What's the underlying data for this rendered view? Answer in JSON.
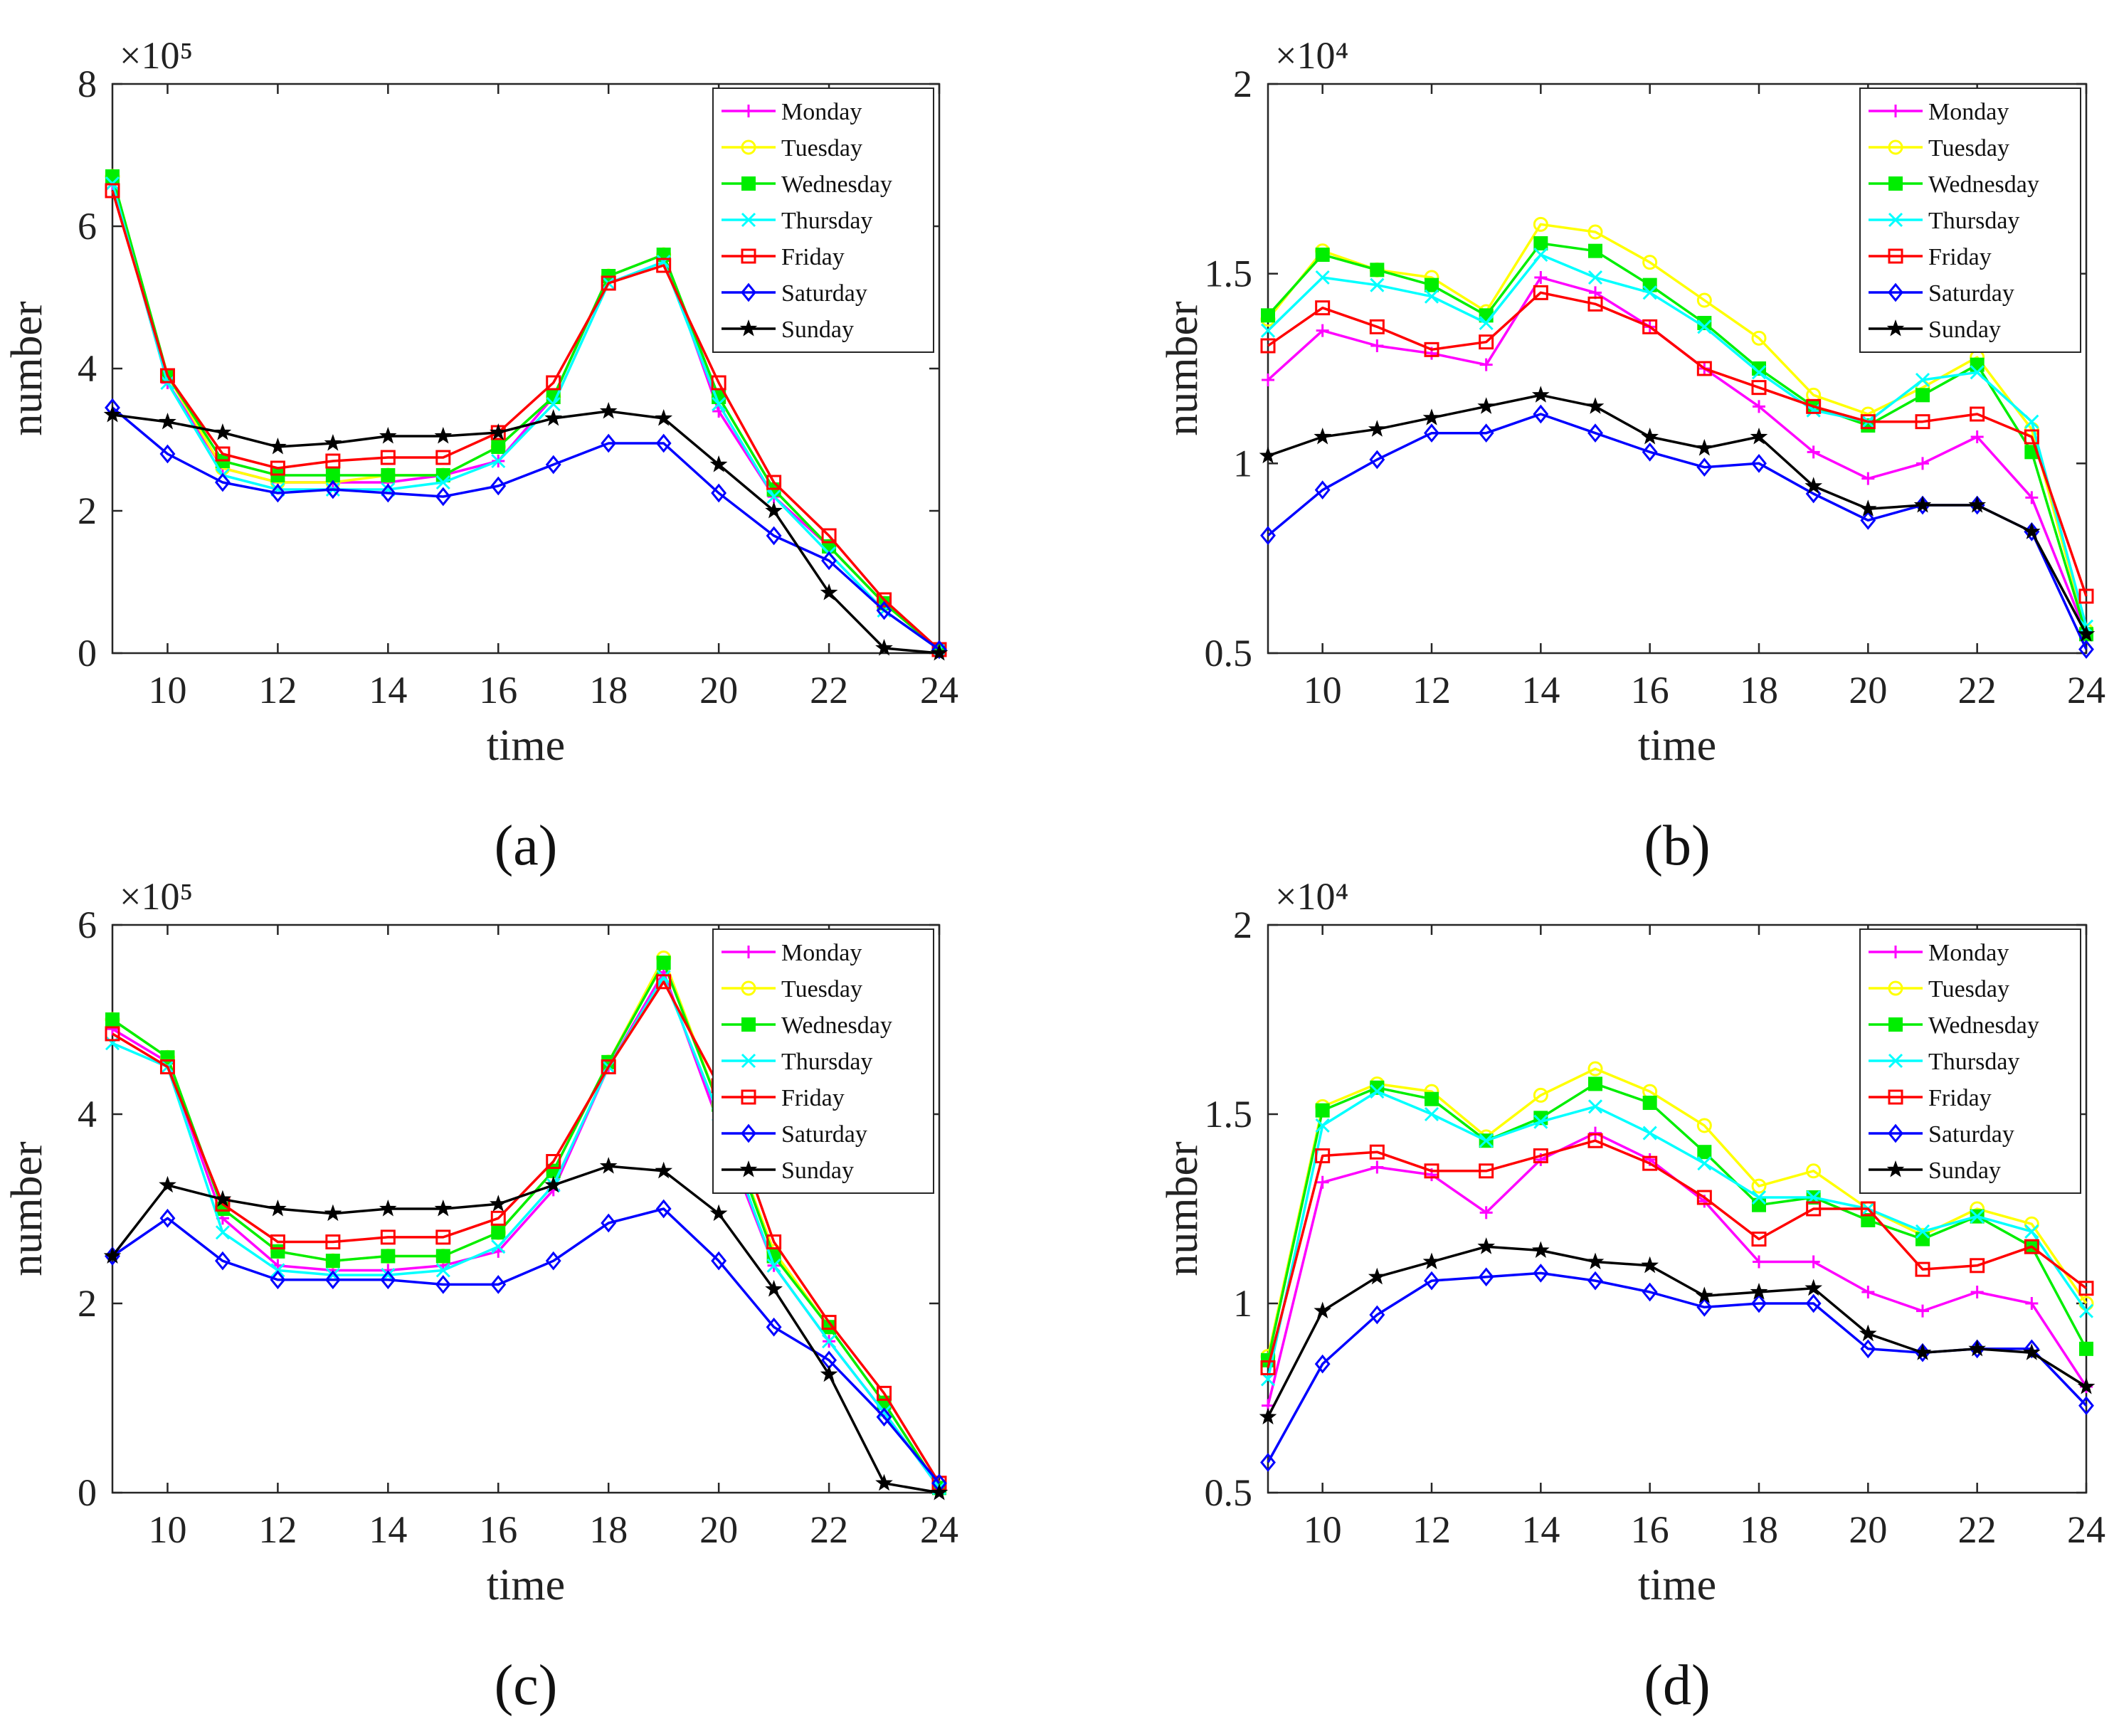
{
  "figure": {
    "panel_labels": [
      "(a)",
      "(b)",
      "(c)",
      "(d)"
    ]
  },
  "series_colors": {
    "Monday": "#ff00ff",
    "Tuesday": "#ffff00",
    "Wednesday": "#00ee00",
    "Thursday": "#00ffff",
    "Friday": "#ff0000",
    "Saturday": "#0000ff",
    "Sunday": "#000000"
  },
  "series_markers": {
    "Monday": "plus",
    "Tuesday": "circle",
    "Wednesday": "square-filled",
    "Thursday": "x",
    "Friday": "square",
    "Saturday": "diamond",
    "Sunday": "star"
  },
  "chart_data": [
    {
      "type": "line",
      "panel": "(a)",
      "xlabel": "time",
      "ylabel": "number",
      "exponent_label": "×10⁵",
      "xlim": [
        9,
        24
      ],
      "ylim": [
        0,
        8
      ],
      "xticks": [
        10,
        12,
        14,
        16,
        18,
        20,
        22,
        24
      ],
      "yticks": [
        0,
        2,
        4,
        6,
        8
      ],
      "legend_position": "top-right",
      "x": [
        9,
        10,
        11,
        12,
        13,
        14,
        15,
        16,
        17,
        18,
        19,
        20,
        21,
        22,
        23,
        24
      ],
      "series": [
        {
          "name": "Monday",
          "legend_label": "Monday",
          "values": [
            6.6,
            3.8,
            2.6,
            2.4,
            2.4,
            2.4,
            2.5,
            2.7,
            3.6,
            5.3,
            5.6,
            3.4,
            2.2,
            1.5,
            0.7,
            0.05
          ]
        },
        {
          "name": "Tuesday",
          "legend_label": "Tuesday",
          "values": [
            6.7,
            3.9,
            2.6,
            2.4,
            2.4,
            2.5,
            2.5,
            2.9,
            3.6,
            5.3,
            5.6,
            3.6,
            2.3,
            1.5,
            0.7,
            0.05
          ]
        },
        {
          "name": "Wednesday",
          "legend_label": "Wednesday",
          "values": [
            6.7,
            3.9,
            2.7,
            2.5,
            2.5,
            2.5,
            2.5,
            2.9,
            3.6,
            5.3,
            5.6,
            3.6,
            2.3,
            1.5,
            0.7,
            0.05
          ]
        },
        {
          "name": "Thursday",
          "legend_label": "Thursday",
          "values": [
            6.6,
            3.8,
            2.5,
            2.3,
            2.3,
            2.3,
            2.4,
            2.7,
            3.5,
            5.2,
            5.5,
            3.5,
            2.2,
            1.4,
            0.6,
            0.05
          ]
        },
        {
          "name": "Friday",
          "legend_label": " Friday",
          "values": [
            6.5,
            3.9,
            2.8,
            2.6,
            2.7,
            2.75,
            2.75,
            3.1,
            3.8,
            5.2,
            5.45,
            3.8,
            2.4,
            1.65,
            0.75,
            0.05
          ]
        },
        {
          "name": "Saturday",
          "legend_label": " Saturday",
          "values": [
            3.45,
            2.8,
            2.4,
            2.25,
            2.3,
            2.25,
            2.2,
            2.35,
            2.65,
            2.95,
            2.95,
            2.25,
            1.65,
            1.3,
            0.6,
            0.05
          ]
        },
        {
          "name": "Sunday",
          "legend_label": " Sunday",
          "values": [
            3.35,
            3.25,
            3.1,
            2.9,
            2.95,
            3.05,
            3.05,
            3.1,
            3.3,
            3.4,
            3.3,
            2.65,
            2.0,
            0.85,
            0.07,
            0.0
          ]
        }
      ]
    },
    {
      "type": "line",
      "panel": "(b)",
      "xlabel": "time",
      "ylabel": "number",
      "exponent_label": "×10⁴",
      "xlim": [
        9,
        24
      ],
      "ylim": [
        0.5,
        2
      ],
      "xticks": [
        10,
        12,
        14,
        16,
        18,
        20,
        22,
        24
      ],
      "yticks": [
        0.5,
        1,
        1.5,
        2
      ],
      "legend_position": "top-right",
      "x": [
        9,
        10,
        11,
        12,
        13,
        14,
        15,
        16,
        17,
        18,
        19,
        20,
        21,
        22,
        23,
        24
      ],
      "series": [
        {
          "name": "Monday",
          "legend_label": "Monday",
          "values": [
            1.22,
            1.35,
            1.31,
            1.29,
            1.26,
            1.49,
            1.45,
            1.36,
            1.25,
            1.15,
            1.03,
            0.96,
            1.0,
            1.07,
            0.91,
            0.55
          ]
        },
        {
          "name": "Tuesday",
          "legend_label": "Tuesday",
          "values": [
            1.38,
            1.56,
            1.51,
            1.49,
            1.4,
            1.63,
            1.61,
            1.53,
            1.43,
            1.33,
            1.18,
            1.13,
            1.2,
            1.28,
            1.09,
            0.56
          ]
        },
        {
          "name": "Wednesday",
          "legend_label": "Wednesday",
          "values": [
            1.39,
            1.55,
            1.51,
            1.47,
            1.39,
            1.58,
            1.56,
            1.47,
            1.37,
            1.25,
            1.15,
            1.1,
            1.18,
            1.26,
            1.03,
            0.55
          ]
        },
        {
          "name": "Thursday",
          "legend_label": "Thursday",
          "values": [
            1.35,
            1.49,
            1.47,
            1.44,
            1.37,
            1.55,
            1.49,
            1.45,
            1.36,
            1.24,
            1.14,
            1.11,
            1.22,
            1.24,
            1.11,
            0.57
          ]
        },
        {
          "name": "Friday",
          "legend_label": " Friday",
          "values": [
            1.31,
            1.41,
            1.36,
            1.3,
            1.32,
            1.45,
            1.42,
            1.36,
            1.25,
            1.2,
            1.15,
            1.11,
            1.11,
            1.13,
            1.07,
            0.65
          ]
        },
        {
          "name": "Saturday",
          "legend_label": " Saturday",
          "values": [
            0.81,
            0.93,
            1.01,
            1.08,
            1.08,
            1.13,
            1.08,
            1.03,
            0.99,
            1.0,
            0.92,
            0.85,
            0.89,
            0.89,
            0.82,
            0.51
          ]
        },
        {
          "name": "Sunday",
          "legend_label": " Sunday",
          "values": [
            1.02,
            1.07,
            1.09,
            1.12,
            1.15,
            1.18,
            1.15,
            1.07,
            1.04,
            1.07,
            0.94,
            0.88,
            0.89,
            0.89,
            0.82,
            0.55
          ]
        }
      ]
    },
    {
      "type": "line",
      "panel": "(c)",
      "xlabel": "time",
      "ylabel": "number",
      "exponent_label": "×10⁵",
      "xlim": [
        9,
        24
      ],
      "ylim": [
        0,
        6
      ],
      "xticks": [
        10,
        12,
        14,
        16,
        18,
        20,
        22,
        24
      ],
      "yticks": [
        0,
        2,
        4,
        6
      ],
      "legend_position": "top-right",
      "x": [
        9,
        10,
        11,
        12,
        13,
        14,
        15,
        16,
        17,
        18,
        19,
        20,
        21,
        22,
        23,
        24
      ],
      "series": [
        {
          "name": "Monday",
          "legend_label": "Monday",
          "values": [
            4.9,
            4.55,
            2.9,
            2.4,
            2.35,
            2.35,
            2.4,
            2.55,
            3.2,
            4.5,
            5.5,
            3.9,
            2.4,
            1.6,
            0.85,
            0.05
          ]
        },
        {
          "name": "Tuesday",
          "legend_label": "Tuesday",
          "values": [
            5.0,
            4.6,
            3.0,
            2.55,
            2.45,
            2.5,
            2.5,
            2.75,
            3.4,
            4.55,
            5.65,
            4.1,
            2.55,
            1.75,
            0.95,
            0.05
          ]
        },
        {
          "name": "Wednesday",
          "legend_label": "Wednesday",
          "values": [
            5.0,
            4.6,
            3.0,
            2.55,
            2.45,
            2.5,
            2.5,
            2.75,
            3.4,
            4.55,
            5.6,
            4.1,
            2.5,
            1.75,
            0.95,
            0.05
          ]
        },
        {
          "name": "Thursday",
          "legend_label": "Thursday",
          "values": [
            4.75,
            4.5,
            2.75,
            2.35,
            2.3,
            2.3,
            2.35,
            2.6,
            3.25,
            4.5,
            5.45,
            4.0,
            2.4,
            1.6,
            0.85,
            0.05
          ]
        },
        {
          "name": "Friday",
          "legend_label": " Friday",
          "values": [
            4.85,
            4.5,
            3.05,
            2.65,
            2.65,
            2.7,
            2.7,
            2.9,
            3.5,
            4.5,
            5.4,
            4.3,
            2.65,
            1.8,
            1.05,
            0.1
          ]
        },
        {
          "name": "Saturday",
          "legend_label": " Saturday",
          "values": [
            2.5,
            2.9,
            2.45,
            2.25,
            2.25,
            2.25,
            2.2,
            2.2,
            2.45,
            2.85,
            3.0,
            2.45,
            1.75,
            1.4,
            0.8,
            0.1
          ]
        },
        {
          "name": "Sunday",
          "legend_label": " Sunday",
          "values": [
            2.5,
            3.25,
            3.1,
            3.0,
            2.95,
            3.0,
            3.0,
            3.05,
            3.25,
            3.45,
            3.4,
            2.95,
            2.15,
            1.25,
            0.1,
            0.0
          ]
        }
      ]
    },
    {
      "type": "line",
      "panel": "(d)",
      "xlabel": "time",
      "ylabel": "number",
      "exponent_label": "×10⁴",
      "xlim": [
        9,
        24
      ],
      "ylim": [
        0.5,
        2
      ],
      "xticks": [
        10,
        12,
        14,
        16,
        18,
        20,
        22,
        24
      ],
      "yticks": [
        0.5,
        1,
        1.5,
        2
      ],
      "legend_position": "top-right",
      "x": [
        9,
        10,
        11,
        12,
        13,
        14,
        15,
        16,
        17,
        18,
        19,
        20,
        21,
        22,
        23,
        24
      ],
      "series": [
        {
          "name": "Monday",
          "legend_label": "Monday",
          "values": [
            0.73,
            1.32,
            1.36,
            1.34,
            1.24,
            1.38,
            1.45,
            1.38,
            1.27,
            1.11,
            1.11,
            1.03,
            0.98,
            1.03,
            1.0,
            0.78
          ]
        },
        {
          "name": "Tuesday",
          "legend_label": "Tuesday",
          "values": [
            0.86,
            1.52,
            1.58,
            1.56,
            1.44,
            1.55,
            1.62,
            1.56,
            1.47,
            1.31,
            1.35,
            1.25,
            1.18,
            1.25,
            1.21,
            1.0
          ]
        },
        {
          "name": "Wednesday",
          "legend_label": "Wednesday",
          "values": [
            0.85,
            1.51,
            1.57,
            1.54,
            1.43,
            1.49,
            1.58,
            1.53,
            1.4,
            1.26,
            1.28,
            1.22,
            1.17,
            1.23,
            1.15,
            0.88
          ]
        },
        {
          "name": "Thursday",
          "legend_label": "Thursday",
          "values": [
            0.8,
            1.47,
            1.56,
            1.5,
            1.43,
            1.48,
            1.52,
            1.45,
            1.37,
            1.28,
            1.28,
            1.25,
            1.19,
            1.23,
            1.19,
            0.98
          ]
        },
        {
          "name": "Friday",
          "legend_label": " Friday",
          "values": [
            0.83,
            1.39,
            1.4,
            1.35,
            1.35,
            1.39,
            1.43,
            1.37,
            1.28,
            1.17,
            1.25,
            1.25,
            1.09,
            1.1,
            1.15,
            1.04
          ]
        },
        {
          "name": "Saturday",
          "legend_label": " Saturday",
          "values": [
            0.58,
            0.84,
            0.97,
            1.06,
            1.07,
            1.08,
            1.06,
            1.03,
            0.99,
            1.0,
            1.0,
            0.88,
            0.87,
            0.88,
            0.88,
            0.73
          ]
        },
        {
          "name": "Sunday",
          "legend_label": " Sunday",
          "values": [
            0.7,
            0.98,
            1.07,
            1.11,
            1.15,
            1.14,
            1.11,
            1.1,
            1.02,
            1.03,
            1.04,
            0.92,
            0.87,
            0.88,
            0.87,
            0.78
          ]
        }
      ]
    }
  ]
}
